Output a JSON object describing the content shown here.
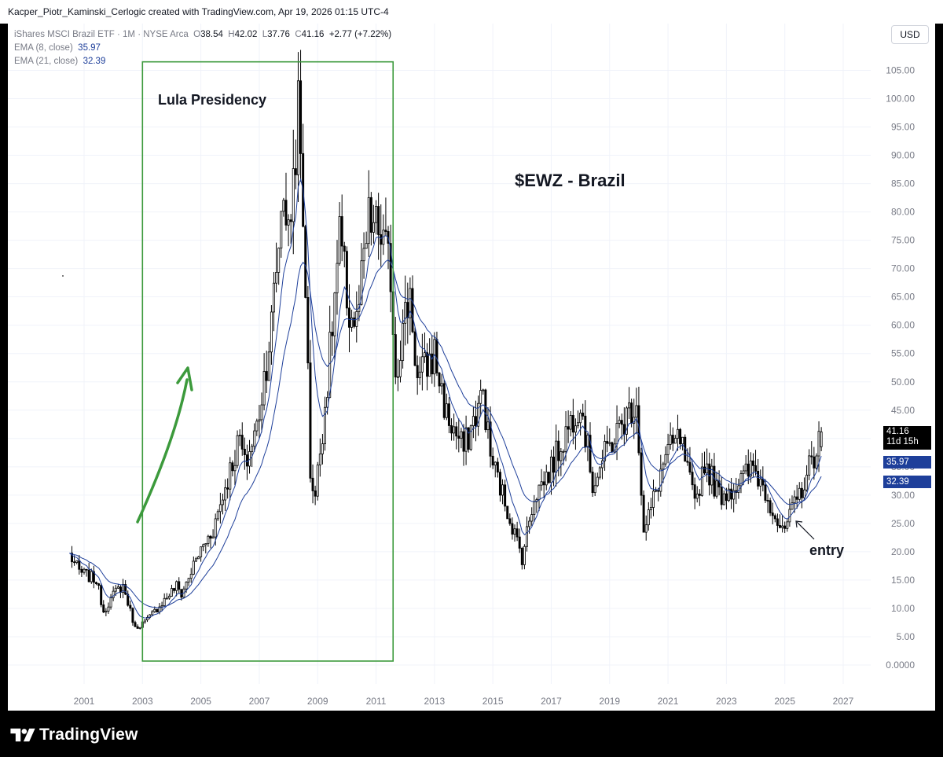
{
  "attribution": "Kacper_Piotr_Kaminski_Cerlogic created with TradingView.com, Apr 19, 2026 01:15 UTC-4",
  "legend": {
    "symbol_line": "iShares MSCI Brazil ETF · 1M · NYSE Arca",
    "open_label": "O",
    "open": "38.54",
    "high_label": "H",
    "high": "42.02",
    "low_label": "L",
    "low": "37.76",
    "close_label": "C",
    "close": "41.16",
    "change": "+2.77 (+7.22%)",
    "ema8_label": "EMA (8, close)",
    "ema8_value": "35.97",
    "ema21_label": "EMA (21, close)",
    "ema21_value": "32.39"
  },
  "currency": "USD",
  "price_tags": {
    "last_price": "41.16",
    "countdown": "11d 15h",
    "ema8": "35.97",
    "ema21": "32.39"
  },
  "brand": "TradingView",
  "colors": {
    "candle": "#000000",
    "ema": "#1e3f9a",
    "annotation_green": "#3c9a3c",
    "grid": "#f0f3fa",
    "axis_text": "#787b86"
  },
  "chart_data": {
    "type": "candlestick",
    "interval": "1M",
    "x_range": [
      "2000-06",
      "2027-06"
    ],
    "ylim": [
      0,
      107
    ],
    "grid": true,
    "x_ticks": [
      "2001",
      "2003",
      "2005",
      "2007",
      "2009",
      "2011",
      "2013",
      "2015",
      "2017",
      "2019",
      "2021",
      "2023",
      "2025",
      "2027"
    ],
    "y_ticks": [
      "0.0000",
      "5.00",
      "10.00",
      "15.00",
      "20.00",
      "25.00",
      "30.00",
      "35.00",
      "40.00",
      "45.00",
      "50.00",
      "55.00",
      "60.00",
      "65.00",
      "70.00",
      "75.00",
      "80.00",
      "85.00",
      "90.00",
      "95.00",
      "100.00",
      "105.00"
    ],
    "close_anchors": [
      [
        "2000-07",
        19.5
      ],
      [
        "2000-11",
        16.5
      ],
      [
        "2001-06",
        15.0
      ],
      [
        "2001-09",
        9.5
      ],
      [
        "2002-02",
        13.0
      ],
      [
        "2002-05",
        14.0
      ],
      [
        "2002-10",
        6.5
      ],
      [
        "2003-03",
        8.0
      ],
      [
        "2003-09",
        11.0
      ],
      [
        "2004-03",
        14.0
      ],
      [
        "2004-05",
        12.5
      ],
      [
        "2004-12",
        19.5
      ],
      [
        "2005-06",
        24.0
      ],
      [
        "2005-12",
        33.0
      ],
      [
        "2006-05",
        40.0
      ],
      [
        "2006-07",
        35.0
      ],
      [
        "2006-12",
        42.0
      ],
      [
        "2007-06",
        60.0
      ],
      [
        "2007-11",
        85.0
      ],
      [
        "2008-01",
        75.0
      ],
      [
        "2008-05",
        98.0
      ],
      [
        "2008-08",
        68.0
      ],
      [
        "2008-10",
        34.0
      ],
      [
        "2008-12",
        30.0
      ],
      [
        "2009-05",
        50.0
      ],
      [
        "2009-10",
        75.0
      ],
      [
        "2010-02",
        62.0
      ],
      [
        "2010-05",
        60.0
      ],
      [
        "2010-10",
        78.0
      ],
      [
        "2011-03",
        76.0
      ],
      [
        "2011-07",
        69.0
      ],
      [
        "2011-09",
        52.0
      ],
      [
        "2012-03",
        66.0
      ],
      [
        "2012-06",
        50.0
      ],
      [
        "2013-01",
        55.0
      ],
      [
        "2013-06",
        44.0
      ],
      [
        "2014-01",
        38.0
      ],
      [
        "2014-09",
        48.0
      ],
      [
        "2014-12",
        37.0
      ],
      [
        "2015-08",
        26.0
      ],
      [
        "2016-01",
        19.0
      ],
      [
        "2016-06",
        30.0
      ],
      [
        "2016-12",
        34.0
      ],
      [
        "2018-01",
        47.0
      ],
      [
        "2018-06",
        32.0
      ],
      [
        "2018-12",
        38.0
      ],
      [
        "2019-12",
        47.0
      ],
      [
        "2020-03",
        23.0
      ],
      [
        "2020-12",
        37.0
      ],
      [
        "2021-06",
        40.0
      ],
      [
        "2021-12",
        28.0
      ],
      [
        "2022-04",
        36.0
      ],
      [
        "2022-10",
        30.0
      ],
      [
        "2023-06",
        32.0
      ],
      [
        "2023-12",
        35.0
      ],
      [
        "2024-06",
        30.0
      ],
      [
        "2024-12",
        23.0
      ],
      [
        "2025-06",
        29.0
      ],
      [
        "2025-12",
        36.0
      ],
      [
        "2026-04",
        41.16
      ]
    ],
    "last_candle": {
      "date": "2026-04",
      "open": 38.54,
      "high": 42.02,
      "low": 37.76,
      "close": 41.16
    },
    "series": [
      {
        "name": "EMA (8, close)",
        "last": 35.97
      },
      {
        "name": "EMA (21, close)",
        "last": 32.39
      }
    ],
    "annotations": [
      {
        "text": "Lula Presidency",
        "x_start": "2003-01",
        "x_end": "2011-08",
        "y_range": [
          0.7,
          106.5
        ]
      },
      {
        "text": "$EWZ - Brazil"
      },
      {
        "text": "entry",
        "arrow_target": [
          "2025-05",
          26
        ]
      }
    ]
  }
}
